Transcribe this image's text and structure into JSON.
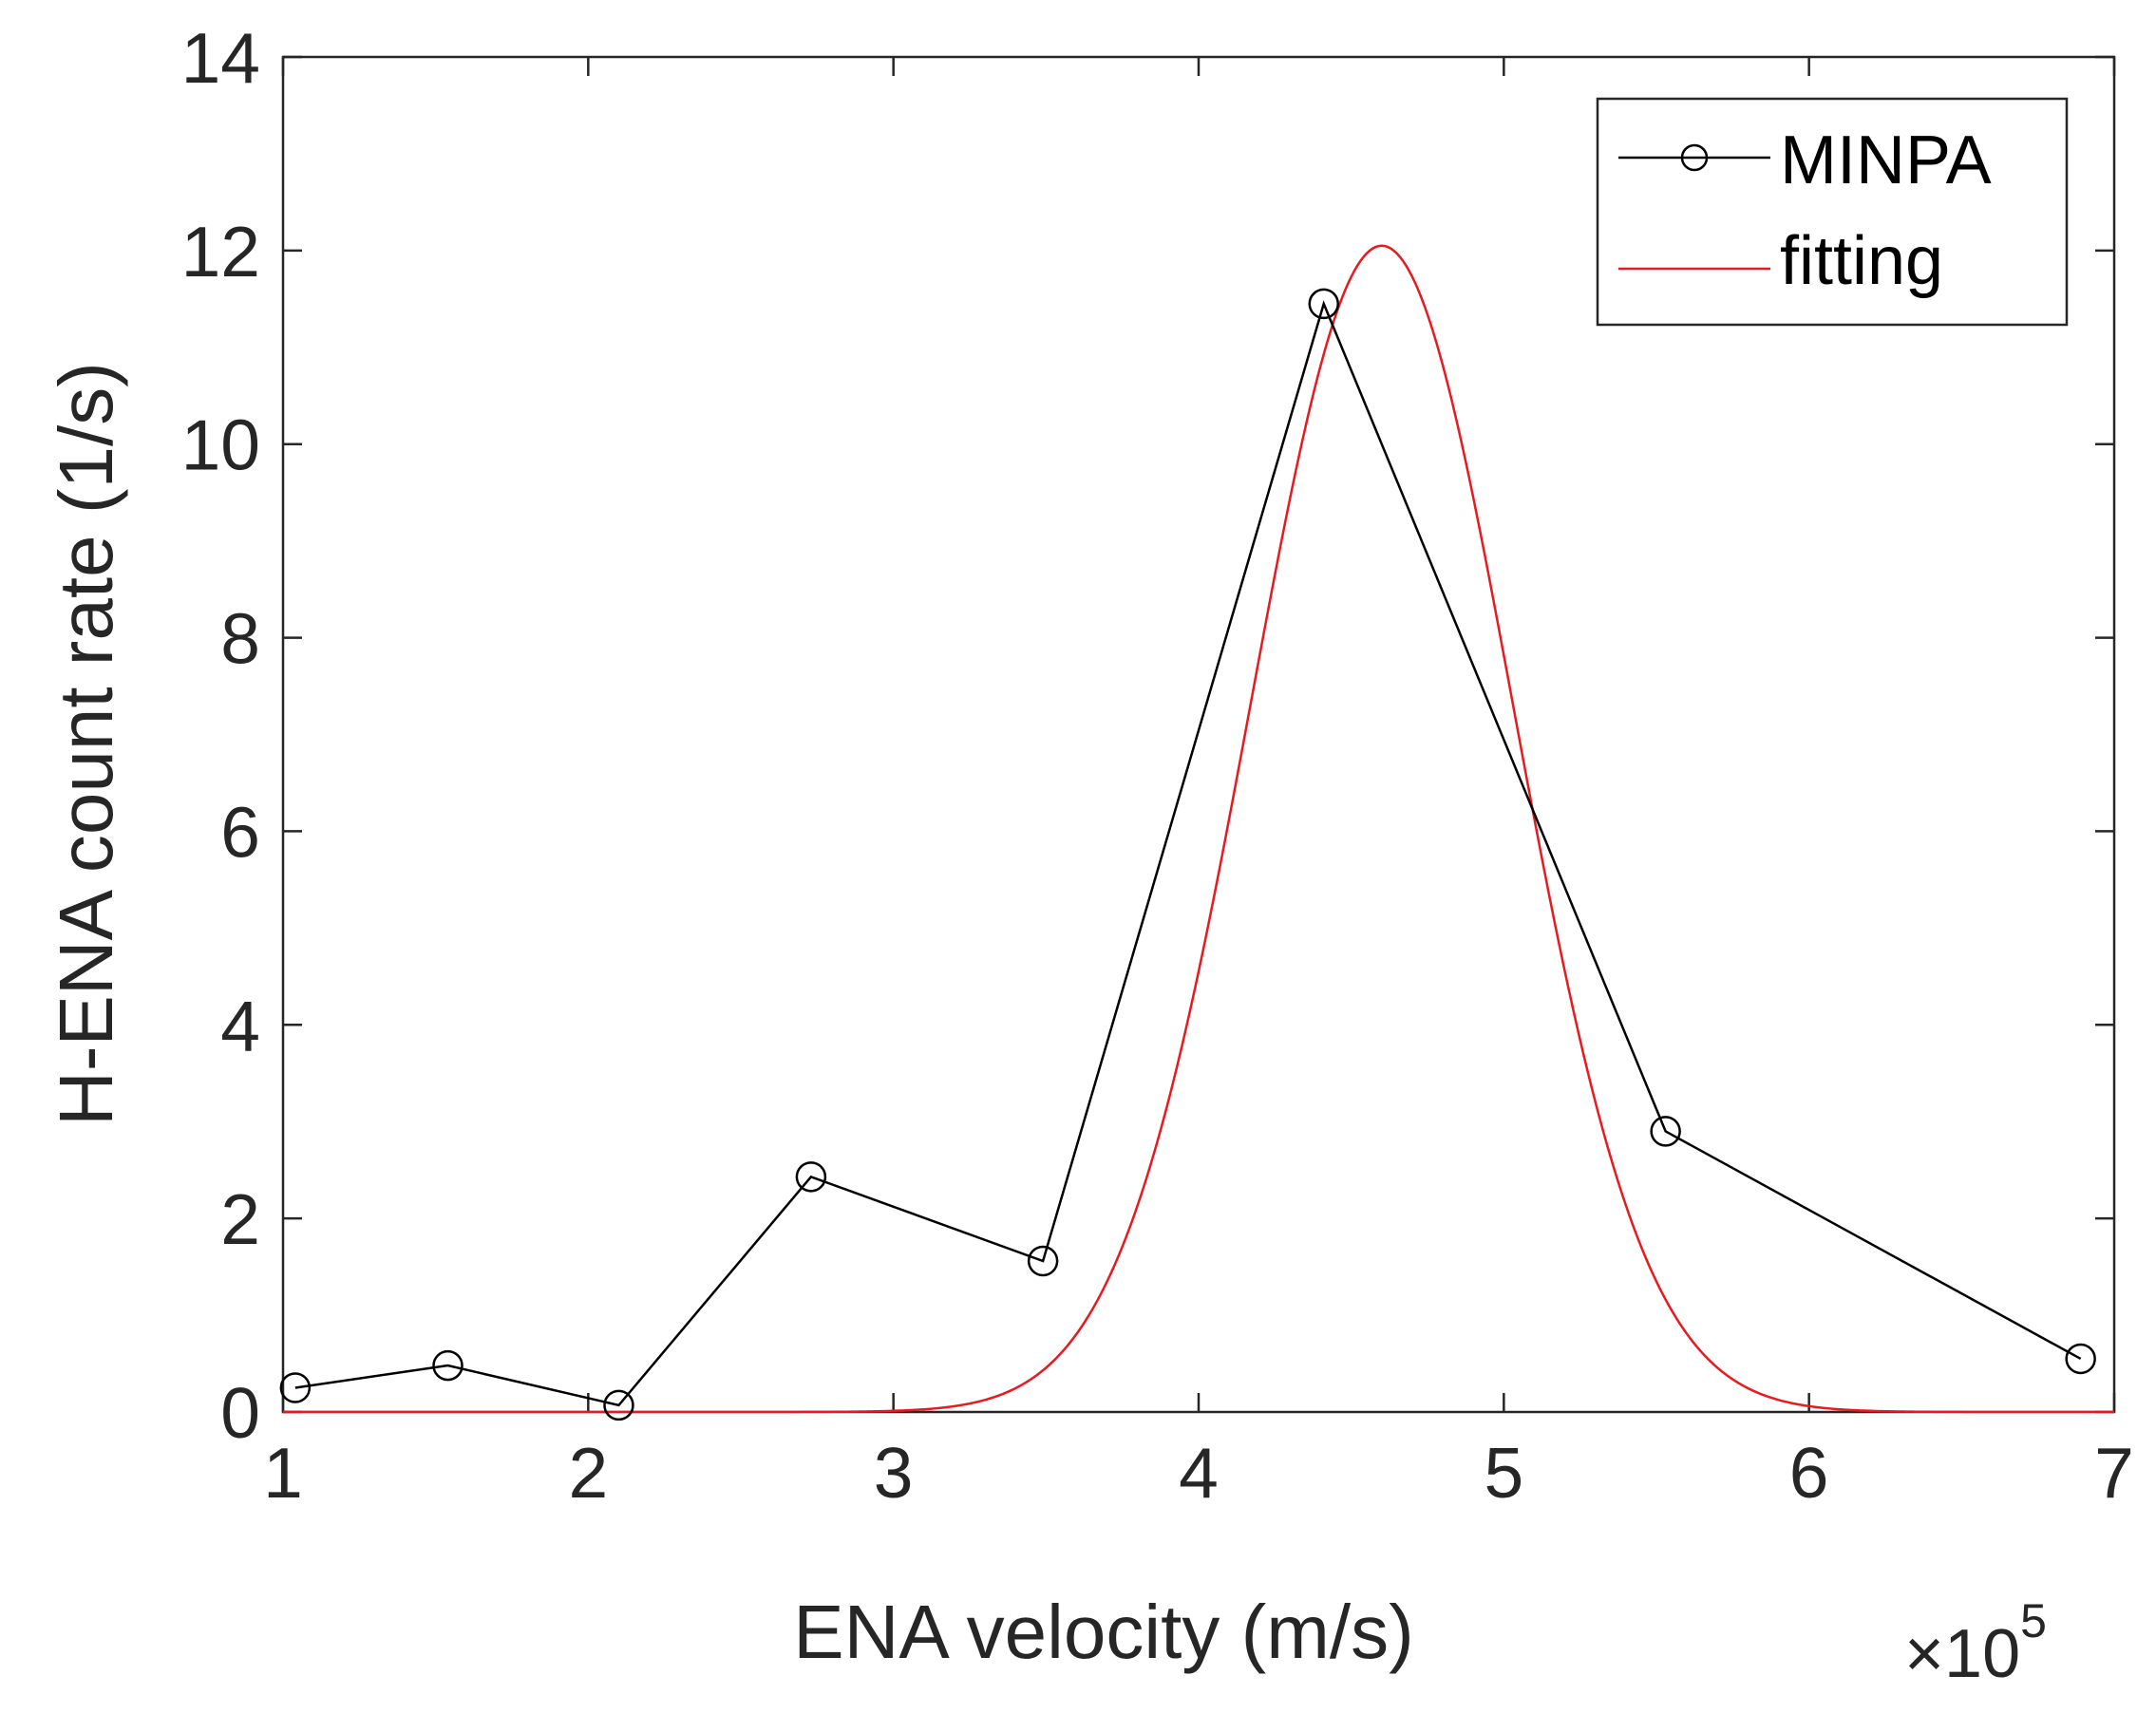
{
  "chart_data": {
    "type": "line",
    "title": "",
    "xlabel": "ENA velocity (m/s)",
    "ylabel": "H-ENA count rate (1/s)",
    "x_multiplier": {
      "base": "×10",
      "exponent": "5"
    },
    "xlim": [
      1,
      7
    ],
    "ylim": [
      0,
      14
    ],
    "xticks": [
      1,
      2,
      3,
      4,
      5,
      6,
      7
    ],
    "yticks": [
      0,
      2,
      4,
      6,
      8,
      10,
      12,
      14
    ],
    "grid": false,
    "legend_position": "top-right",
    "series": [
      {
        "name": "MINPA",
        "style": "line-circle-markers",
        "color": "#000000",
        "x": [
          1.04,
          1.54,
          2.1,
          2.73,
          3.49,
          4.41,
          5.53,
          6.89
        ],
        "y": [
          0.25,
          0.48,
          0.07,
          2.43,
          1.56,
          11.45,
          2.9,
          0.55
        ]
      },
      {
        "name": "fitting",
        "style": "line",
        "color": "#e8191f",
        "model": "gaussian",
        "amplitude": 12.05,
        "center": 4.6,
        "sigma": 0.43
      }
    ]
  }
}
